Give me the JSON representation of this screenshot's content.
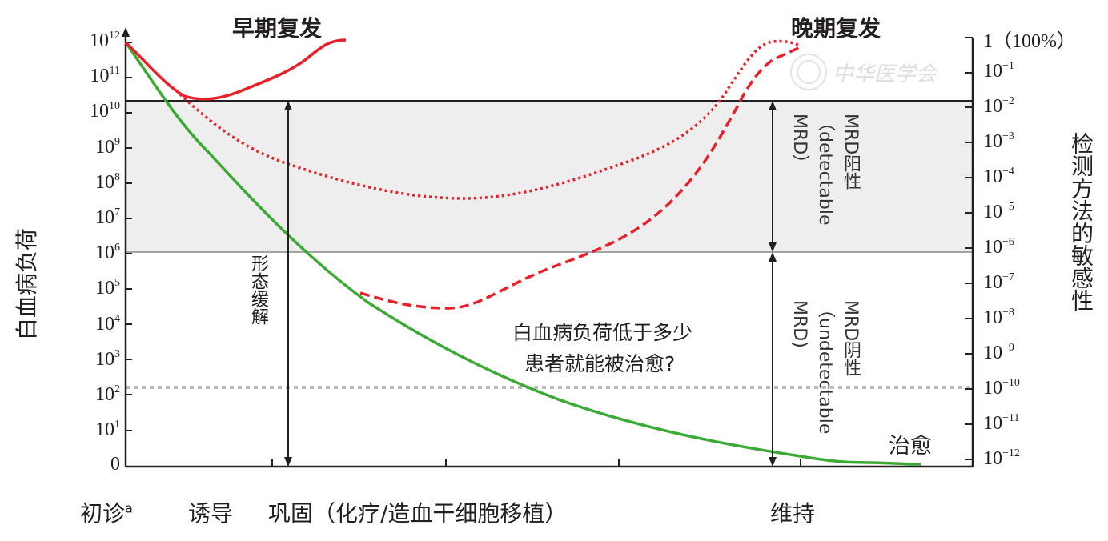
{
  "titles": {
    "early_relapse": "早期复发",
    "late_relapse": "晚期复发"
  },
  "left_axis": {
    "label": "白血病负荷",
    "ticks": [
      {
        "base": "10",
        "exp": "12"
      },
      {
        "base": "10",
        "exp": "11"
      },
      {
        "base": "10",
        "exp": "10"
      },
      {
        "base": "10",
        "exp": "9"
      },
      {
        "base": "10",
        "exp": "8"
      },
      {
        "base": "10",
        "exp": "7"
      },
      {
        "base": "10",
        "exp": "6"
      },
      {
        "base": "10",
        "exp": "5"
      },
      {
        "base": "10",
        "exp": "4"
      },
      {
        "base": "10",
        "exp": "3"
      },
      {
        "base": "10",
        "exp": "2"
      },
      {
        "base": "10",
        "exp": "1"
      },
      {
        "base": "0",
        "exp": ""
      }
    ]
  },
  "right_axis": {
    "label": "检测方法的敏感性",
    "ticks": [
      {
        "base": "1（100%）",
        "exp": ""
      },
      {
        "base": "10",
        "exp": "−1"
      },
      {
        "base": "10",
        "exp": "−2"
      },
      {
        "base": "10",
        "exp": "−3"
      },
      {
        "base": "10",
        "exp": "−4"
      },
      {
        "base": "10",
        "exp": "−5"
      },
      {
        "base": "10",
        "exp": "−6"
      },
      {
        "base": "10",
        "exp": "−7"
      },
      {
        "base": "10",
        "exp": "−8"
      },
      {
        "base": "10",
        "exp": "−9"
      },
      {
        "base": "10",
        "exp": "−10"
      },
      {
        "base": "10",
        "exp": "−11"
      },
      {
        "base": "10",
        "exp": "−12"
      }
    ]
  },
  "annotations": {
    "morphologic_remission": "形态缓解",
    "mrd_positive": "MRD阳性（detectable MRD）",
    "mrd_negative": "MRD阴性（undetectable MRD)",
    "question_line1": "白血病负荷低于多少",
    "question_line2": "患者就能被治愈?",
    "cure": "治愈"
  },
  "phases": {
    "diagnosis": "初诊",
    "diagnosis_note": "a",
    "induction": "诱导",
    "consolidation": "巩固（化疗/造血干细胞移植）",
    "maintenance": "维持"
  },
  "watermark": "中华医学会",
  "colors": {
    "green": "#3aaa35",
    "red": "#e8202a",
    "band": "#efeeee",
    "dotted_gray": "#bbbbbb"
  }
}
